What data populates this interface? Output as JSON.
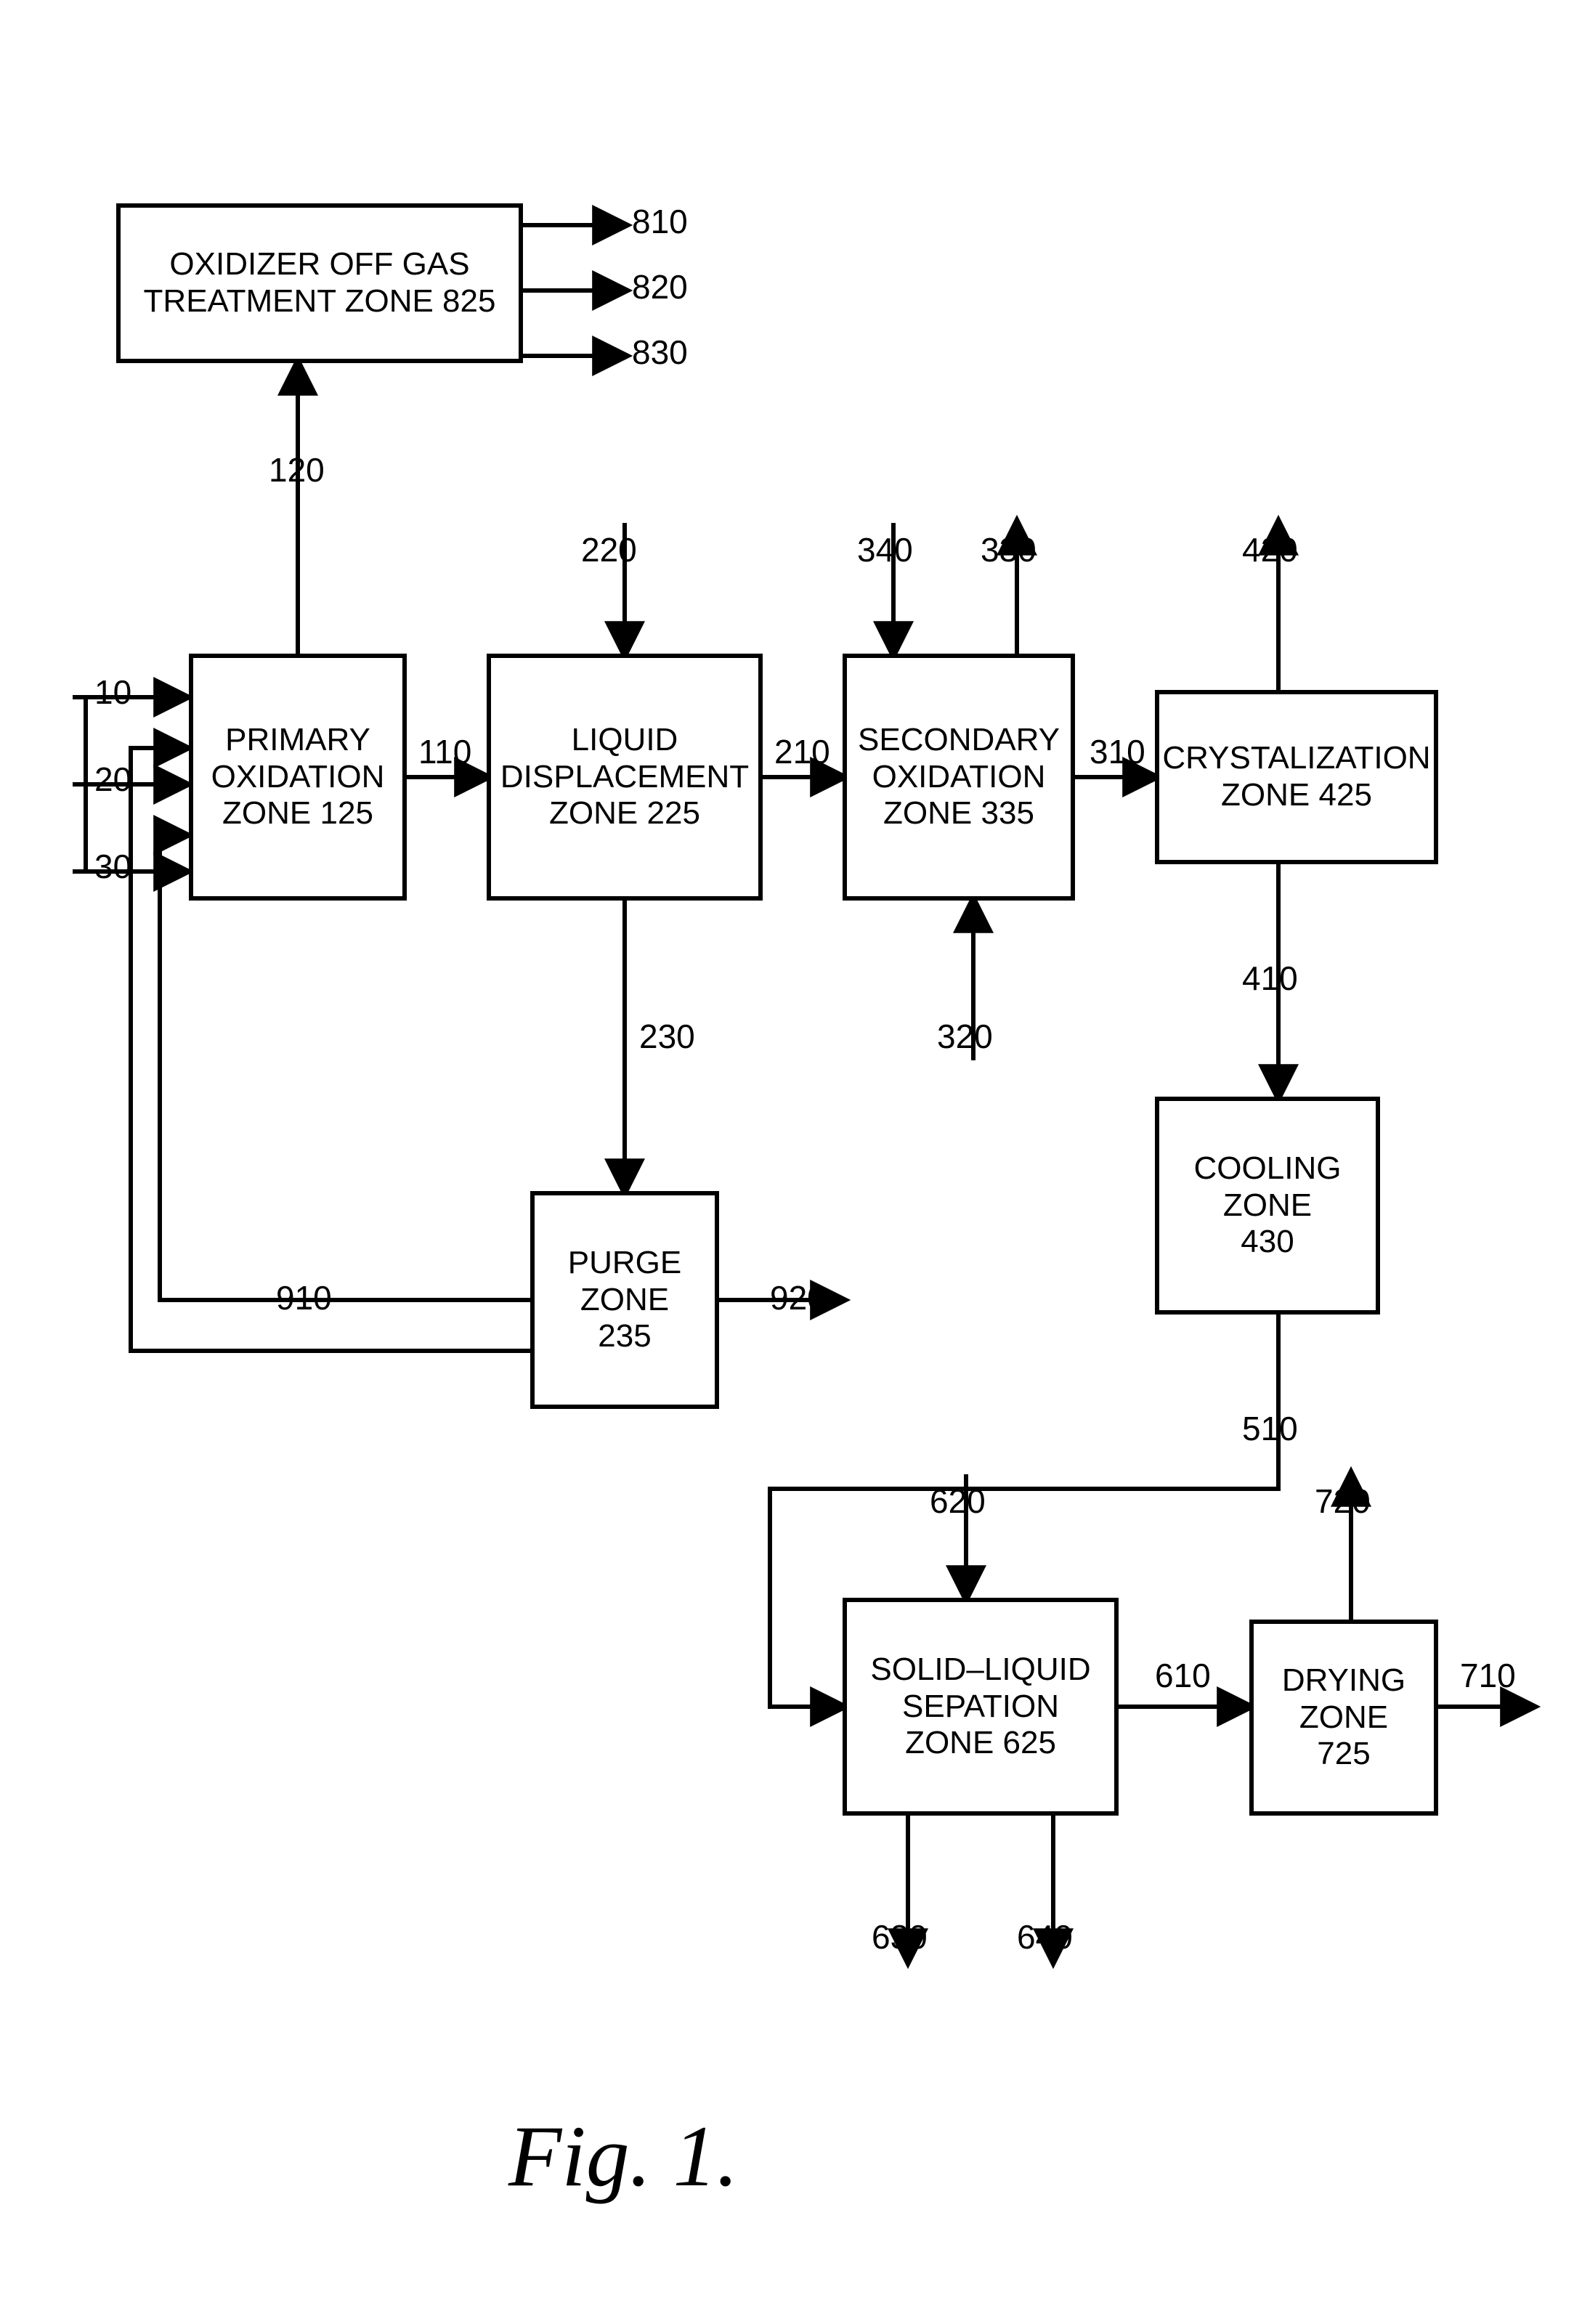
{
  "figure_label": "Fig. 1.",
  "boxes": {
    "oxidizer_off_gas": {
      "line1": "OXIDIZER OFF GAS",
      "line2": "TREATMENT ZONE 825"
    },
    "primary_oxidation": {
      "line1": "PRIMARY",
      "line2": "OXIDATION",
      "line3": "ZONE 125"
    },
    "liquid_displacement": {
      "line1": "LIQUID",
      "line2": "DISPLACEMENT",
      "line3": "ZONE 225"
    },
    "secondary_oxidation": {
      "line1": "SECONDARY",
      "line2": "OXIDATION",
      "line3": "ZONE 335"
    },
    "crystallization": {
      "line1": "CRYSTALIZATION",
      "line2": "ZONE 425"
    },
    "cooling": {
      "line1": "COOLING",
      "line2": "ZONE",
      "line3": "430"
    },
    "purge": {
      "line1": "PURGE",
      "line2": "ZONE",
      "line3": "235"
    },
    "solid_liquid": {
      "line1": "SOLID–LIQUID",
      "line2": "SEPATION",
      "line3": "ZONE 625"
    },
    "drying": {
      "line1": "DRYING",
      "line2": "ZONE",
      "line3": "725"
    }
  },
  "streams": {
    "s10": "10",
    "s20": "20",
    "s30": "30",
    "s110": "110",
    "s120": "120",
    "s210": "210",
    "s220": "220",
    "s230": "230",
    "s310": "310",
    "s320": "320",
    "s330": "330",
    "s340": "340",
    "s410": "410",
    "s420": "420",
    "s510": "510",
    "s610": "610",
    "s620": "620",
    "s630": "630",
    "s640": "640",
    "s710": "710",
    "s720": "720",
    "s810": "810",
    "s820": "820",
    "s830": "830",
    "s910": "910",
    "s920": "920"
  },
  "style": {
    "stroke": "#000000",
    "stroke_width": 6,
    "font_size_box": 44,
    "font_size_label": 46,
    "font_size_fig": 120,
    "arrow_size": 28
  }
}
